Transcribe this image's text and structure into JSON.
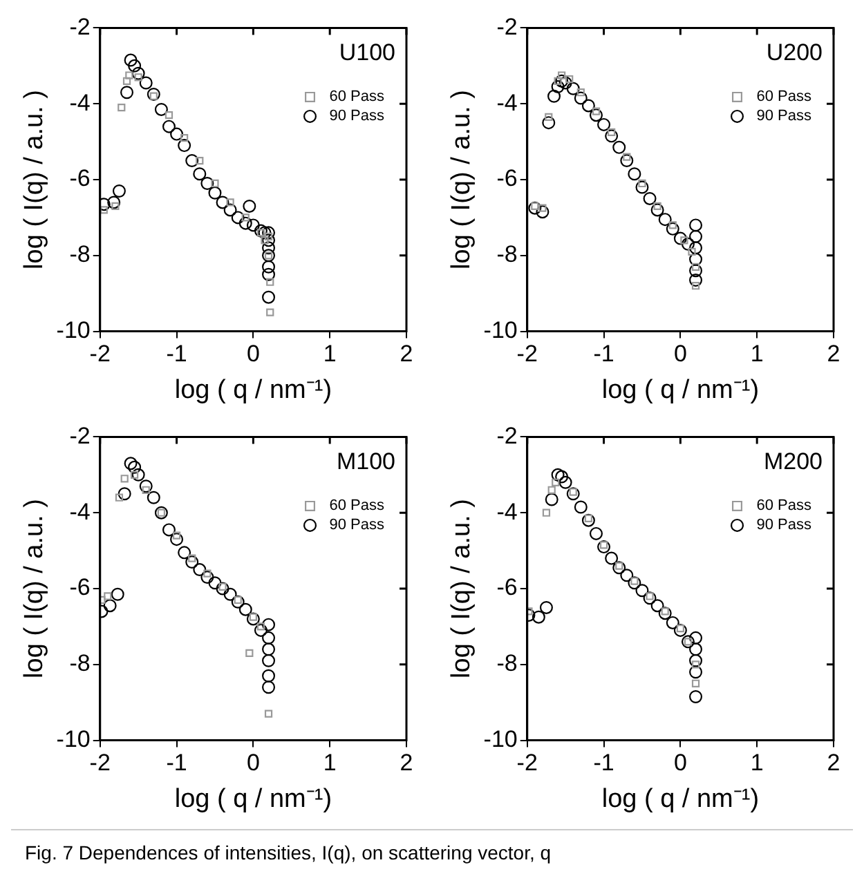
{
  "chart_data": [
    {
      "type": "scatter",
      "xlabel": "log ( q / nm⁻¹)",
      "ylabel": "log ( I(q) / a.u. )",
      "xlim": [
        -2,
        2
      ],
      "ylim": [
        -10,
        -2
      ],
      "xticks": [
        -2,
        -1,
        0,
        1,
        2
      ],
      "yticks": [
        -10,
        -8,
        -6,
        -4,
        -2
      ],
      "legend": "top right",
      "grid": false,
      "annotations": [
        "U100"
      ],
      "series": [
        {
          "name": "60 Pass",
          "color": "#999999",
          "marker": "square",
          "x": [
            -1.95,
            -1.8,
            -1.72,
            -1.65,
            -1.62,
            -1.5,
            -1.3,
            -1.1,
            -0.9,
            -0.7,
            -0.5,
            -0.3,
            -0.1,
            0.1,
            0.15,
            0.2,
            0.2,
            0.22,
            0.22
          ],
          "values": [
            -6.8,
            -6.7,
            -4.1,
            -3.4,
            -3.25,
            -3.3,
            -3.8,
            -4.3,
            -4.9,
            -5.5,
            -6.1,
            -6.6,
            -7.0,
            -7.4,
            -7.6,
            -7.5,
            -8.0,
            -8.7,
            -9.5
          ]
        },
        {
          "name": "90 Pass",
          "color": "#000000",
          "marker": "circle",
          "x": [
            -1.95,
            -1.82,
            -1.75,
            -1.65,
            -1.6,
            -1.55,
            -1.5,
            -1.4,
            -1.3,
            -1.2,
            -1.1,
            -1.0,
            -0.9,
            -0.8,
            -0.7,
            -0.6,
            -0.5,
            -0.4,
            -0.3,
            -0.2,
            -0.1,
            -0.05,
            0,
            0.1,
            0.15,
            0.2,
            0.2,
            0.2,
            0.2,
            0.2,
            0.2,
            0.2
          ],
          "values": [
            -6.65,
            -6.6,
            -6.3,
            -3.7,
            -2.85,
            -3.0,
            -3.2,
            -3.45,
            -3.75,
            -4.15,
            -4.6,
            -4.8,
            -5.1,
            -5.5,
            -5.85,
            -6.1,
            -6.35,
            -6.6,
            -6.8,
            -7.0,
            -7.15,
            -6.7,
            -7.2,
            -7.35,
            -7.4,
            -7.4,
            -7.6,
            -7.8,
            -8.0,
            -8.3,
            -8.5,
            -9.1
          ]
        }
      ]
    },
    {
      "type": "scatter",
      "xlabel": "log ( q / nm⁻¹)",
      "ylabel": "log ( I(q) / a.u. )",
      "xlim": [
        -2,
        2
      ],
      "ylim": [
        -10,
        -2
      ],
      "xticks": [
        -2,
        -1,
        0,
        1,
        2
      ],
      "yticks": [
        -10,
        -8,
        -6,
        -4,
        -2
      ],
      "legend": "top right",
      "grid": false,
      "annotations": [
        "U200"
      ],
      "series": [
        {
          "name": "60 Pass",
          "color": "#999999",
          "marker": "square",
          "x": [
            -1.9,
            -1.8,
            -1.72,
            -1.6,
            -1.55,
            -1.45,
            -1.3,
            -1.1,
            -0.9,
            -0.7,
            -0.5,
            -0.3,
            -0.1,
            0.05,
            0.15,
            0.2,
            0.2
          ],
          "values": [
            -6.7,
            -6.75,
            -4.35,
            -3.4,
            -3.25,
            -3.35,
            -3.7,
            -4.2,
            -4.75,
            -5.4,
            -6.1,
            -6.7,
            -7.2,
            -7.6,
            -7.9,
            -8.3,
            -8.8
          ]
        },
        {
          "name": "90 Pass",
          "color": "#000000",
          "marker": "circle",
          "x": [
            -1.9,
            -1.8,
            -1.72,
            -1.65,
            -1.6,
            -1.55,
            -1.5,
            -1.4,
            -1.3,
            -1.2,
            -1.1,
            -1.0,
            -0.9,
            -0.8,
            -0.7,
            -0.6,
            -0.5,
            -0.4,
            -0.3,
            -0.2,
            -0.1,
            0,
            0.1,
            0.2,
            0.2,
            0.2,
            0.2,
            0.2,
            0.2
          ],
          "values": [
            -6.75,
            -6.85,
            -4.5,
            -3.8,
            -3.55,
            -3.4,
            -3.45,
            -3.6,
            -3.85,
            -4.05,
            -4.3,
            -4.55,
            -4.85,
            -5.15,
            -5.5,
            -5.85,
            -6.2,
            -6.5,
            -6.8,
            -7.05,
            -7.3,
            -7.55,
            -7.7,
            -7.2,
            -7.5,
            -7.8,
            -8.1,
            -8.4,
            -8.65
          ]
        }
      ]
    },
    {
      "type": "scatter",
      "xlabel": "log ( q / nm⁻¹)",
      "ylabel": "log ( I(q) / a.u. )",
      "xlim": [
        -2,
        2
      ],
      "ylim": [
        -10,
        -2
      ],
      "xticks": [
        -2,
        -1,
        0,
        1,
        2
      ],
      "yticks": [
        -10,
        -8,
        -6,
        -4,
        -2
      ],
      "legend": "top right",
      "grid": false,
      "annotations": [
        "M100"
      ],
      "series": [
        {
          "name": "60 Pass",
          "color": "#999999",
          "marker": "square",
          "x": [
            -1.98,
            -1.9,
            -1.75,
            -1.68,
            -1.55,
            -1.4,
            -1.2,
            -1.0,
            -0.8,
            -0.6,
            -0.4,
            -0.2,
            0,
            0.1,
            -0.05,
            0.2
          ],
          "values": [
            -6.3,
            -6.2,
            -3.6,
            -3.1,
            -3.0,
            -3.4,
            -4.0,
            -4.6,
            -5.2,
            -5.6,
            -5.95,
            -6.3,
            -6.75,
            -7.0,
            -7.7,
            -9.3
          ]
        },
        {
          "name": "90 Pass",
          "color": "#000000",
          "marker": "circle",
          "x": [
            -1.98,
            -1.87,
            -1.77,
            -1.68,
            -1.6,
            -1.55,
            -1.5,
            -1.4,
            -1.3,
            -1.2,
            -1.1,
            -1.0,
            -0.9,
            -0.8,
            -0.7,
            -0.6,
            -0.5,
            -0.4,
            -0.3,
            -0.2,
            -0.1,
            0,
            0.1,
            0.2,
            0.2,
            0.2,
            0.2,
            0.2,
            0.2
          ],
          "values": [
            -6.6,
            -6.45,
            -6.15,
            -3.5,
            -2.7,
            -2.8,
            -3.0,
            -3.3,
            -3.6,
            -4.0,
            -4.45,
            -4.7,
            -5.05,
            -5.3,
            -5.5,
            -5.7,
            -5.85,
            -6.0,
            -6.15,
            -6.35,
            -6.55,
            -6.8,
            -7.1,
            -6.95,
            -7.3,
            -7.6,
            -7.9,
            -8.3,
            -8.6
          ]
        }
      ]
    },
    {
      "type": "scatter",
      "xlabel": "log ( q / nm⁻¹)",
      "ylabel": "log ( I(q) / a.u. )",
      "xlim": [
        -2,
        2
      ],
      "ylim": [
        -10,
        -2
      ],
      "xticks": [
        -2,
        -1,
        0,
        1,
        2
      ],
      "yticks": [
        -10,
        -8,
        -6,
        -4,
        -2
      ],
      "legend": "top right",
      "grid": false,
      "annotations": [
        "M200"
      ],
      "series": [
        {
          "name": "60 Pass",
          "color": "#999999",
          "marker": "square",
          "x": [
            -1.98,
            -1.75,
            -1.68,
            -1.63,
            -1.4,
            -1.2,
            -1.0,
            -0.8,
            -0.6,
            -0.4,
            -0.2,
            0,
            0.1,
            0.2,
            0.2
          ],
          "values": [
            -6.6,
            -4.0,
            -3.4,
            -3.2,
            -3.45,
            -4.15,
            -4.85,
            -5.4,
            -5.8,
            -6.2,
            -6.6,
            -7.05,
            -7.4,
            -8.0,
            -8.5
          ]
        },
        {
          "name": "90 Pass",
          "color": "#000000",
          "marker": "circle",
          "x": [
            -1.98,
            -1.85,
            -1.75,
            -1.68,
            -1.6,
            -1.55,
            -1.5,
            -1.4,
            -1.3,
            -1.2,
            -1.1,
            -1.0,
            -0.9,
            -0.8,
            -0.7,
            -0.6,
            -0.5,
            -0.4,
            -0.3,
            -0.2,
            -0.1,
            0,
            0.1,
            0.2,
            0.2,
            0.2,
            0.2,
            0.2
          ],
          "values": [
            -6.7,
            -6.75,
            -6.5,
            -3.65,
            -3.0,
            -3.05,
            -3.2,
            -3.5,
            -3.85,
            -4.2,
            -4.55,
            -4.9,
            -5.2,
            -5.45,
            -5.65,
            -5.85,
            -6.05,
            -6.25,
            -6.45,
            -6.65,
            -6.9,
            -7.1,
            -7.4,
            -7.3,
            -7.6,
            -7.9,
            -8.2,
            -8.85
          ]
        }
      ]
    },
    {
      "type": "other",
      "annotations": [
        "Fig. 7 Dependences of intensities, I(q), on scattering vector, q"
      ]
    }
  ]
}
